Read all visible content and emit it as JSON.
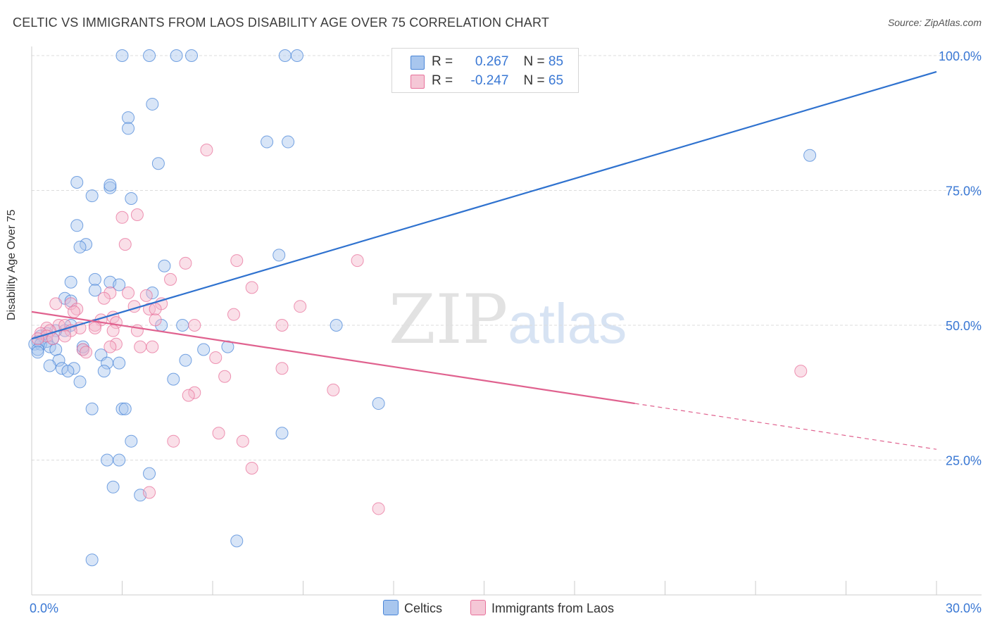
{
  "title": "CELTIC VS IMMIGRANTS FROM LAOS DISABILITY AGE OVER 75 CORRELATION CHART",
  "source": "Source: ZipAtlas.com",
  "watermark": {
    "zip": "ZIP",
    "atlas": "atlas"
  },
  "colors": {
    "celtic": "#4a86d8",
    "celtic_fill": "#a8c6ee",
    "laos": "#e8719b",
    "laos_fill": "#f5b8cd",
    "grid": "#dddddd",
    "axis_text": "#3a78d4"
  },
  "legend": {
    "celtic": {
      "r_label": "R =",
      "r_value": "0.267",
      "n_label": "N =",
      "n_value": "85"
    },
    "laos": {
      "r_label": "R =",
      "r_value": "-0.247",
      "n_label": "N =",
      "n_value": "65"
    }
  },
  "bottom_legend": {
    "celtic": "Celtics",
    "laos": "Immigrants from Laos"
  },
  "chart_data": {
    "type": "scatter",
    "title": "CELTIC VS IMMIGRANTS FROM LAOS DISABILITY AGE OVER 75 CORRELATION CHART",
    "xlabel": "",
    "ylabel": "Disability Age Over 75",
    "xlim": [
      0,
      30
    ],
    "ylim": [
      0,
      100
    ],
    "x_tick_labels": [
      "0.0%",
      "30.0%"
    ],
    "y_tick_labels": [
      "25.0%",
      "50.0%",
      "75.0%",
      "100.0%"
    ],
    "y_ticks": [
      25,
      50,
      75,
      100
    ],
    "grid": true,
    "legend_position": "top-center",
    "series": [
      {
        "name": "Celtics",
        "r": 0.267,
        "n": 85,
        "trend": {
          "x": [
            0,
            30
          ],
          "y": [
            47.5,
            97.0
          ]
        },
        "points": [
          [
            3.0,
            100
          ],
          [
            3.9,
            100
          ],
          [
            4.8,
            100
          ],
          [
            5.3,
            100
          ],
          [
            8.4,
            100
          ],
          [
            8.8,
            100
          ],
          [
            4.0,
            91
          ],
          [
            3.2,
            88.5
          ],
          [
            3.2,
            86.5
          ],
          [
            7.8,
            84
          ],
          [
            8.5,
            84
          ],
          [
            25.8,
            81.5
          ],
          [
            4.2,
            80
          ],
          [
            1.5,
            76.5
          ],
          [
            2.6,
            75.5
          ],
          [
            2.6,
            76
          ],
          [
            2.0,
            74
          ],
          [
            3.3,
            73.5
          ],
          [
            1.5,
            68.5
          ],
          [
            1.8,
            65
          ],
          [
            1.6,
            64.5
          ],
          [
            8.2,
            63
          ],
          [
            4.4,
            61
          ],
          [
            1.3,
            58
          ],
          [
            2.1,
            58.5
          ],
          [
            2.6,
            58
          ],
          [
            2.9,
            57.5
          ],
          [
            2.1,
            56.5
          ],
          [
            4.0,
            56
          ],
          [
            1.1,
            55
          ],
          [
            1.3,
            54.5
          ],
          [
            4.3,
            50
          ],
          [
            5.0,
            50
          ],
          [
            10.1,
            50
          ],
          [
            1.3,
            50
          ],
          [
            1.1,
            49
          ],
          [
            0.8,
            49
          ],
          [
            0.5,
            48.5
          ],
          [
            0.3,
            48
          ],
          [
            0.7,
            47.5
          ],
          [
            0.5,
            47
          ],
          [
            0.2,
            47
          ],
          [
            0.1,
            46.5
          ],
          [
            0.3,
            46.5
          ],
          [
            0.6,
            46
          ],
          [
            0.2,
            45.5
          ],
          [
            0.8,
            45.5
          ],
          [
            1.7,
            45.5
          ],
          [
            1.7,
            46
          ],
          [
            5.7,
            45.5
          ],
          [
            6.5,
            46
          ],
          [
            0.2,
            45
          ],
          [
            2.3,
            44.5
          ],
          [
            0.9,
            43.5
          ],
          [
            2.5,
            43
          ],
          [
            2.9,
            43
          ],
          [
            5.1,
            43.5
          ],
          [
            0.6,
            42.5
          ],
          [
            1.0,
            42
          ],
          [
            1.4,
            42
          ],
          [
            1.2,
            41.5
          ],
          [
            2.4,
            41.5
          ],
          [
            4.7,
            40
          ],
          [
            1.6,
            39.5
          ],
          [
            11.5,
            35.5
          ],
          [
            2.0,
            34.5
          ],
          [
            3.0,
            34.5
          ],
          [
            3.1,
            34.5
          ],
          [
            8.3,
            30
          ],
          [
            3.3,
            28.5
          ],
          [
            2.5,
            25
          ],
          [
            2.9,
            25
          ],
          [
            3.9,
            22.5
          ],
          [
            2.7,
            20
          ],
          [
            3.6,
            18.5
          ],
          [
            6.8,
            10
          ],
          [
            2.0,
            6.5
          ]
        ]
      },
      {
        "name": "Immigrants from Laos",
        "r": -0.247,
        "n": 65,
        "trend": {
          "x": [
            0,
            20
          ],
          "y": [
            52.5,
            35.5
          ]
        },
        "trend_dashed": {
          "x": [
            20,
            30
          ],
          "y": [
            35.5,
            27
          ]
        },
        "points": [
          [
            5.8,
            82.5
          ],
          [
            3.5,
            70.5
          ],
          [
            3.0,
            70
          ],
          [
            3.1,
            65
          ],
          [
            6.8,
            62
          ],
          [
            10.8,
            62
          ],
          [
            5.1,
            61.5
          ],
          [
            4.6,
            58.5
          ],
          [
            7.3,
            57
          ],
          [
            2.6,
            56
          ],
          [
            3.2,
            56
          ],
          [
            3.8,
            55.5
          ],
          [
            2.4,
            55
          ],
          [
            0.8,
            54
          ],
          [
            1.3,
            54
          ],
          [
            4.3,
            54
          ],
          [
            3.4,
            53.5
          ],
          [
            8.9,
            53.5
          ],
          [
            1.5,
            53
          ],
          [
            3.9,
            53
          ],
          [
            4.1,
            53
          ],
          [
            1.4,
            52.5
          ],
          [
            6.7,
            52
          ],
          [
            2.7,
            51.5
          ],
          [
            2.3,
            51
          ],
          [
            4.1,
            51
          ],
          [
            2.8,
            50.5
          ],
          [
            0.9,
            50
          ],
          [
            1.1,
            50
          ],
          [
            2.1,
            50
          ],
          [
            5.4,
            50
          ],
          [
            8.3,
            50
          ],
          [
            0.5,
            49.5
          ],
          [
            1.6,
            49.5
          ],
          [
            2.1,
            49.5
          ],
          [
            0.6,
            49
          ],
          [
            1.3,
            49
          ],
          [
            2.7,
            49
          ],
          [
            3.5,
            49
          ],
          [
            0.3,
            48.5
          ],
          [
            0.5,
            48
          ],
          [
            1.1,
            48
          ],
          [
            0.2,
            47.5
          ],
          [
            0.7,
            47.5
          ],
          [
            2.8,
            46.5
          ],
          [
            2.6,
            46
          ],
          [
            3.6,
            46
          ],
          [
            4.0,
            46
          ],
          [
            1.7,
            45.5
          ],
          [
            1.8,
            45
          ],
          [
            6.1,
            44
          ],
          [
            8.3,
            42
          ],
          [
            6.4,
            40.5
          ],
          [
            25.5,
            41.5
          ],
          [
            10.0,
            38
          ],
          [
            5.4,
            37.5
          ],
          [
            5.2,
            37
          ],
          [
            6.2,
            30
          ],
          [
            4.7,
            28.5
          ],
          [
            7.0,
            28.5
          ],
          [
            7.3,
            23.5
          ],
          [
            3.9,
            19
          ],
          [
            11.5,
            16
          ]
        ]
      }
    ]
  }
}
